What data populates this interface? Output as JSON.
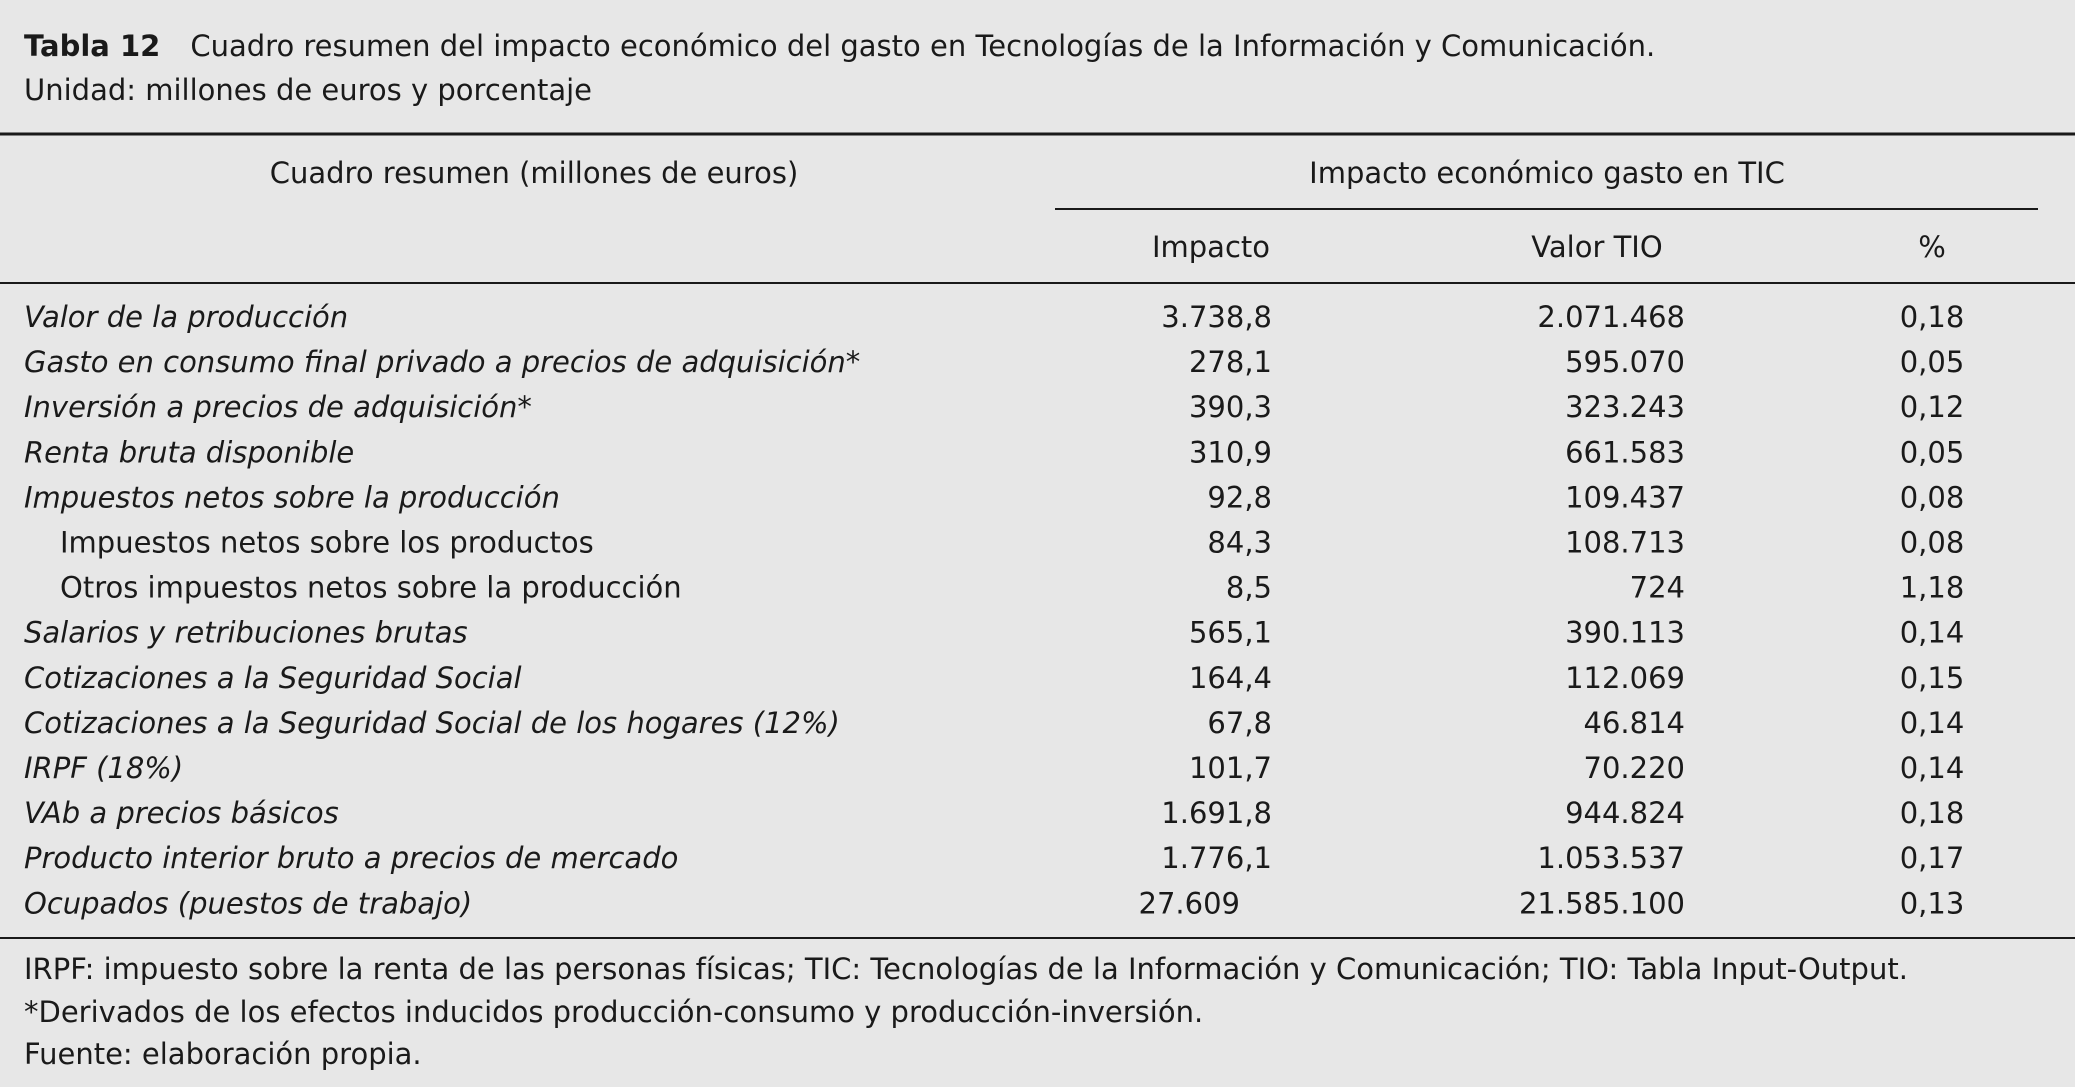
{
  "header": {
    "label": "Tabla 12",
    "title": "Cuadro resumen del impacto económico del gasto en Tecnologías de la Información y Comunicación.",
    "unit": "Unidad: millones de euros y porcentaje"
  },
  "table": {
    "columns": {
      "label": "Cuadro resumen (millones de euros)",
      "group": "Impacto económico gasto en TIC",
      "sub": [
        "Impacto",
        "Valor TIO",
        "%"
      ]
    },
    "rows": [
      [
        "Valor de la producción",
        "3.738,8",
        "2.071.468",
        "0,18"
      ],
      [
        "Gasto en consumo final privado a precios de adquisición*",
        "278,1",
        "595.070",
        "0,05"
      ],
      [
        "Inversión a precios de adquisición*",
        "390,3",
        "323.243",
        "0,12"
      ],
      [
        "Renta bruta disponible",
        "310,9",
        "661.583",
        "0,05"
      ],
      [
        "Impuestos netos sobre la producción",
        "92,8",
        "109.437",
        "0,08"
      ],
      [
        "Impuestos netos sobre los productos",
        "84,3",
        "108.713",
        "0,08"
      ],
      [
        "Otros impuestos netos sobre la producción",
        "8,5",
        "724",
        "1,18"
      ],
      [
        "Salarios y retribuciones brutas",
        "565,1",
        "390.113",
        "0,14"
      ],
      [
        "Cotizaciones a la Seguridad Social",
        "164,4",
        "112.069",
        "0,15"
      ],
      [
        "Cotizaciones a la Seguridad Social de los hogares (12%)",
        "67,8",
        "46.814",
        "0,14"
      ],
      [
        "IRPF (18%)",
        "101,7",
        "70.220",
        "0,14"
      ],
      [
        "VAb a precios básicos",
        "1.691,8",
        "944.824",
        "0,18"
      ],
      [
        "Producto interior bruto a precios de mercado",
        "1.776,1",
        "1.053.537",
        "0,17"
      ],
      [
        "Ocupados (puestos de trabajo)",
        "27.609",
        "21.585.100",
        "0,13"
      ]
    ]
  },
  "footnotes": [
    "IRPF: impuesto sobre la renta de las personas físicas; TIC: Tecnologías de la Información y Comunicación; TIO: Tabla Input-Output.",
    "*Derivados de los efectos inducidos producción-consumo y producción-inversión.",
    "Fuente: elaboración propia."
  ]
}
